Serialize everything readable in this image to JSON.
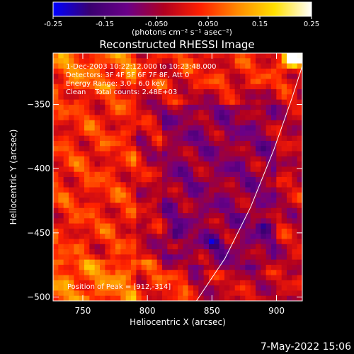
{
  "colorbar": {
    "ticks": [
      -0.25,
      -0.15,
      -0.05,
      0.05,
      0.15,
      0.25
    ],
    "tick_labels": [
      "-0.25",
      "-0.15",
      "-0.050",
      "0.050",
      "0.15",
      "0.25"
    ],
    "range": [
      -0.25,
      0.25
    ],
    "units": "(photons cm⁻² s⁻¹ asec⁻²)",
    "colormap": [
      "#0000ff",
      "#3a0070",
      "#6a0088",
      "#b00020",
      "#ff2000",
      "#ff8a00",
      "#ffe000",
      "#ffffff"
    ]
  },
  "chart_data": {
    "type": "heatmap",
    "title": "Reconstructed RHESSI Image",
    "xlabel": "Heliocentric X (arcsec)",
    "ylabel": "Heliocentric Y (arcsec)",
    "xlim": [
      727,
      920
    ],
    "ylim": [
      -503,
      -310
    ],
    "x_ticks": [
      750,
      800,
      850,
      900
    ],
    "x_tick_labels": [
      "750",
      "800",
      "850",
      "900"
    ],
    "y_ticks": [
      -350,
      -400,
      -450,
      -500
    ],
    "y_tick_labels": [
      "−350",
      "−400",
      "−450",
      "−500"
    ],
    "annotations": [
      " 1-Dec-2003 10:22:12.000 to 10:23:48.000",
      "Detectors: 3F 4F 5F 6F 7F 8F, Att 0",
      "Energy Range: 3.0 - 6.0 keV",
      "Clean    Total counts: 2.48E+03"
    ],
    "peak_label": "Position of Peak = [912,-314]",
    "peak": [
      912,
      -314
    ],
    "limb": [
      [
        838,
        -503
      ],
      [
        860,
        -470
      ],
      [
        880,
        -430
      ],
      [
        898,
        -385
      ],
      [
        912,
        -345
      ],
      [
        920,
        -320
      ]
    ],
    "blue_spots": [
      [
        822,
        -452
      ],
      [
        890,
        -445
      ],
      [
        852,
        -458
      ]
    ],
    "grid": false
  },
  "footer": {
    "date": "7-May-2022 15:06"
  }
}
